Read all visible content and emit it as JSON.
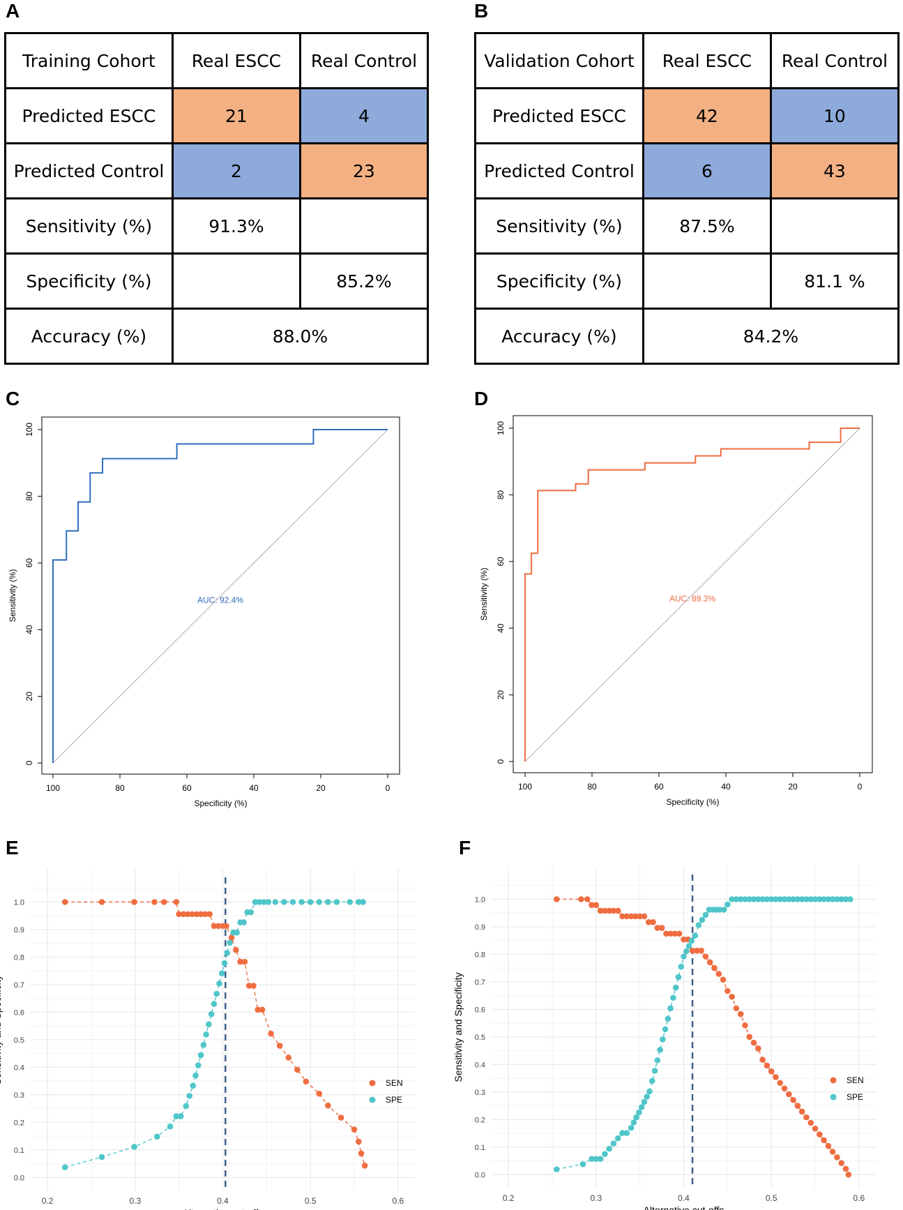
{
  "panels": {
    "a": "A",
    "b": "B",
    "c": "C",
    "d": "D",
    "e": "E",
    "f": "F"
  },
  "colors": {
    "sen": "#ef6d41",
    "spe": "#4fc6c9",
    "roc_train": "#2f6dbb",
    "roc_val": "#ef6d41",
    "cell_orange": "#f3b083",
    "cell_blue": "#8eaadb"
  },
  "tables": {
    "training": {
      "header": [
        "Training Cohort",
        "Real ESCC",
        "Real Control"
      ],
      "row_pred_escc": [
        "Predicted ESCC",
        "21",
        "4"
      ],
      "row_pred_control": [
        "Predicted Control",
        "2",
        "23"
      ],
      "sensitivity": [
        "Sensitivity (%)",
        "91.3%"
      ],
      "specificity": [
        "Specificity (%)",
        "85.2%"
      ],
      "accuracy": [
        "Accuracy (%)",
        "88.0%"
      ]
    },
    "validation": {
      "header": [
        "Validation Cohort",
        "Real ESCC",
        "Real Control"
      ],
      "row_pred_escc": [
        "Predicted ESCC",
        "42",
        "10"
      ],
      "row_pred_control": [
        "Predicted Control",
        "6",
        "43"
      ],
      "sensitivity": [
        "Sensitivity (%)",
        "87.5%"
      ],
      "specificity": [
        "Specificity (%)",
        "81.1 %"
      ],
      "accuracy": [
        "Accuracy (%)",
        "84.2%"
      ]
    }
  },
  "chart_data": [
    {
      "id": "C",
      "type": "line",
      "title": "",
      "xlabel": "Specificity (%)",
      "ylabel": "Sensitivity (%)",
      "xlim": [
        100,
        0
      ],
      "ylim": [
        0,
        100
      ],
      "xticks": [
        "100",
        "80",
        "60",
        "40",
        "20",
        "0"
      ],
      "yticks": [
        "0",
        "20",
        "40",
        "60",
        "80",
        "100"
      ],
      "annotation": "AUC: 92.4%",
      "series": [
        {
          "name": "ROC",
          "color": "#2f6dbb",
          "points": [
            [
              100,
              0
            ],
            [
              100,
              60.9
            ],
            [
              96,
              60.9
            ],
            [
              96,
              69.6
            ],
            [
              92.5,
              69.6
            ],
            [
              92.5,
              78.3
            ],
            [
              88.9,
              78.3
            ],
            [
              88.9,
              87
            ],
            [
              85.2,
              87
            ],
            [
              85.2,
              91.3
            ],
            [
              63,
              91.3
            ],
            [
              63,
              95.7
            ],
            [
              22.2,
              95.7
            ],
            [
              22.2,
              100
            ],
            [
              0,
              100
            ]
          ]
        }
      ]
    },
    {
      "id": "D",
      "type": "line",
      "title": "",
      "xlabel": "Specificity (%)",
      "ylabel": "Sensitivity (%)",
      "xlim": [
        100,
        0
      ],
      "ylim": [
        0,
        100
      ],
      "xticks": [
        "100",
        "80",
        "60",
        "40",
        "20",
        "0"
      ],
      "yticks": [
        "0",
        "20",
        "40",
        "60",
        "80",
        "100"
      ],
      "annotation": "AUC: 89.3%",
      "series": [
        {
          "name": "ROC",
          "color": "#ef6d41",
          "points": [
            [
              100,
              0
            ],
            [
              100,
              56.3
            ],
            [
              98.1,
              56.3
            ],
            [
              98.1,
              62.5
            ],
            [
              96.2,
              62.5
            ],
            [
              96.2,
              81.3
            ],
            [
              84.9,
              81.3
            ],
            [
              84.9,
              83.3
            ],
            [
              81.1,
              83.3
            ],
            [
              81.1,
              87.5
            ],
            [
              64.2,
              87.5
            ],
            [
              64.2,
              89.6
            ],
            [
              49.1,
              89.6
            ],
            [
              49.1,
              91.7
            ],
            [
              41.5,
              91.7
            ],
            [
              41.5,
              93.8
            ],
            [
              15.1,
              93.8
            ],
            [
              15.1,
              95.8
            ],
            [
              5.7,
              95.8
            ],
            [
              5.7,
              100
            ],
            [
              0,
              100
            ]
          ]
        }
      ]
    },
    {
      "id": "E",
      "type": "scatter",
      "title": "",
      "xlabel": "Alternative cut-offs",
      "ylabel": "Sensitivity and Specificity",
      "xlim": [
        0.18,
        0.62
      ],
      "ylim": [
        -0.05,
        1.12
      ],
      "xticks": [
        0.2,
        0.3,
        0.4,
        0.5,
        0.6
      ],
      "xtick_labels": [
        "0.2",
        "0.3",
        "0.4",
        "0.5",
        "0.6"
      ],
      "yticks": [
        0.0,
        0.1,
        0.2,
        0.3,
        0.4,
        0.5,
        0.6,
        0.7,
        0.8,
        0.9,
        1.0
      ],
      "ytick_labels": [
        "0.0",
        "0.1",
        "0.2",
        "0.3",
        "0.4",
        "0.5",
        "0.6",
        "0.7",
        "0.8",
        "0.9",
        "1.0"
      ],
      "cutoff": 0.403,
      "legend": [
        "SEN",
        "SPE"
      ],
      "legend_position": "right",
      "sen_x": [
        0.22,
        0.262,
        0.299,
        0.322,
        0.333,
        0.347,
        0.35,
        0.355,
        0.36,
        0.365,
        0.37,
        0.375,
        0.38,
        0.385,
        0.39,
        0.395,
        0.4,
        0.404,
        0.41,
        0.415,
        0.42,
        0.425,
        0.43,
        0.435,
        0.44,
        0.445,
        0.455,
        0.465,
        0.475,
        0.485,
        0.495,
        0.51,
        0.52,
        0.535,
        0.55,
        0.555,
        0.558,
        0.562
      ],
      "sen_y": [
        1.0,
        1.0,
        1.0,
        1.0,
        1.0,
        1.0,
        0.956,
        0.956,
        0.956,
        0.956,
        0.956,
        0.956,
        0.956,
        0.956,
        0.913,
        0.913,
        0.913,
        0.913,
        0.87,
        0.826,
        0.783,
        0.783,
        0.696,
        0.696,
        0.609,
        0.609,
        0.522,
        0.478,
        0.435,
        0.391,
        0.348,
        0.304,
        0.261,
        0.217,
        0.174,
        0.13,
        0.087,
        0.043
      ],
      "spe_x": [
        0.22,
        0.262,
        0.299,
        0.325,
        0.34,
        0.347,
        0.352,
        0.358,
        0.362,
        0.366,
        0.369,
        0.372,
        0.375,
        0.378,
        0.381,
        0.384,
        0.387,
        0.39,
        0.393,
        0.396,
        0.399,
        0.402,
        0.405,
        0.408,
        0.412,
        0.416,
        0.42,
        0.424,
        0.428,
        0.432,
        0.437,
        0.442,
        0.447,
        0.452,
        0.46,
        0.47,
        0.48,
        0.49,
        0.5,
        0.51,
        0.52,
        0.53,
        0.545,
        0.555,
        0.56
      ],
      "spe_y": [
        0.037,
        0.074,
        0.111,
        0.148,
        0.185,
        0.222,
        0.222,
        0.259,
        0.296,
        0.333,
        0.37,
        0.407,
        0.444,
        0.481,
        0.519,
        0.556,
        0.593,
        0.63,
        0.667,
        0.704,
        0.741,
        0.778,
        0.815,
        0.852,
        0.889,
        0.889,
        0.926,
        0.926,
        0.963,
        0.963,
        1.0,
        1.0,
        1.0,
        1.0,
        1.0,
        1.0,
        1.0,
        1.0,
        1.0,
        1.0,
        1.0,
        1.0,
        1.0,
        1.0,
        1.0
      ]
    },
    {
      "id": "F",
      "type": "scatter",
      "title": "",
      "xlabel": "Alternative cut-offs",
      "ylabel": "Sensitivity and Specificity",
      "xlim": [
        0.18,
        0.62
      ],
      "ylim": [
        -0.05,
        1.12
      ],
      "xticks": [
        0.2,
        0.3,
        0.4,
        0.5,
        0.6
      ],
      "xtick_labels": [
        "0.2",
        "0.3",
        "0.4",
        "0.5",
        "0.6"
      ],
      "yticks": [
        0.0,
        0.1,
        0.2,
        0.3,
        0.4,
        0.5,
        0.6,
        0.7,
        0.8,
        0.9,
        1.0
      ],
      "ytick_labels": [
        "0.0",
        "0.1",
        "0.2",
        "0.3",
        "0.4",
        "0.5",
        "0.6",
        "0.7",
        "0.8",
        "0.9",
        "1.0"
      ],
      "cutoff": 0.41,
      "legend": [
        "SEN",
        "SPE"
      ],
      "legend_position": "right",
      "sen_x": [
        0.255,
        0.283,
        0.29,
        0.295,
        0.3,
        0.305,
        0.31,
        0.315,
        0.32,
        0.325,
        0.33,
        0.335,
        0.34,
        0.345,
        0.35,
        0.355,
        0.36,
        0.365,
        0.37,
        0.375,
        0.38,
        0.385,
        0.39,
        0.395,
        0.4,
        0.405,
        0.41,
        0.415,
        0.42,
        0.425,
        0.43,
        0.435,
        0.44,
        0.445,
        0.45,
        0.455,
        0.46,
        0.465,
        0.47,
        0.475,
        0.48,
        0.485,
        0.49,
        0.495,
        0.5,
        0.505,
        0.51,
        0.515,
        0.52,
        0.525,
        0.53,
        0.535,
        0.54,
        0.545,
        0.55,
        0.555,
        0.56,
        0.565,
        0.57,
        0.575,
        0.58,
        0.585,
        0.588
      ],
      "sen_y": [
        1.0,
        1.0,
        1.0,
        0.979,
        0.979,
        0.958,
        0.958,
        0.958,
        0.958,
        0.958,
        0.938,
        0.938,
        0.938,
        0.938,
        0.938,
        0.938,
        0.917,
        0.917,
        0.896,
        0.896,
        0.875,
        0.875,
        0.875,
        0.875,
        0.854,
        0.854,
        0.813,
        0.813,
        0.813,
        0.792,
        0.771,
        0.75,
        0.729,
        0.708,
        0.667,
        0.646,
        0.604,
        0.583,
        0.542,
        0.5,
        0.479,
        0.458,
        0.417,
        0.396,
        0.375,
        0.354,
        0.333,
        0.313,
        0.292,
        0.271,
        0.25,
        0.229,
        0.208,
        0.188,
        0.167,
        0.146,
        0.125,
        0.104,
        0.083,
        0.063,
        0.042,
        0.021,
        0.0
      ],
      "spe_x": [
        0.255,
        0.285,
        0.295,
        0.3,
        0.305,
        0.31,
        0.315,
        0.32,
        0.325,
        0.33,
        0.335,
        0.34,
        0.343,
        0.346,
        0.349,
        0.352,
        0.355,
        0.358,
        0.361,
        0.364,
        0.367,
        0.37,
        0.373,
        0.376,
        0.379,
        0.382,
        0.385,
        0.388,
        0.391,
        0.394,
        0.397,
        0.4,
        0.403,
        0.406,
        0.409,
        0.413,
        0.417,
        0.421,
        0.425,
        0.429,
        0.433,
        0.437,
        0.441,
        0.446,
        0.45,
        0.455,
        0.46,
        0.465,
        0.47,
        0.475,
        0.48,
        0.485,
        0.49,
        0.495,
        0.5,
        0.505,
        0.51,
        0.515,
        0.52,
        0.525,
        0.53,
        0.535,
        0.54,
        0.545,
        0.55,
        0.555,
        0.56,
        0.565,
        0.57,
        0.575,
        0.58,
        0.585,
        0.59
      ],
      "spe_y": [
        0.019,
        0.038,
        0.057,
        0.057,
        0.057,
        0.075,
        0.094,
        0.113,
        0.132,
        0.151,
        0.151,
        0.17,
        0.189,
        0.208,
        0.226,
        0.245,
        0.264,
        0.283,
        0.302,
        0.34,
        0.377,
        0.415,
        0.453,
        0.491,
        0.528,
        0.566,
        0.604,
        0.642,
        0.679,
        0.717,
        0.755,
        0.792,
        0.811,
        0.83,
        0.849,
        0.868,
        0.906,
        0.925,
        0.943,
        0.962,
        0.962,
        0.962,
        0.962,
        0.962,
        0.981,
        1.0,
        1.0,
        1.0,
        1.0,
        1.0,
        1.0,
        1.0,
        1.0,
        1.0,
        1.0,
        1.0,
        1.0,
        1.0,
        1.0,
        1.0,
        1.0,
        1.0,
        1.0,
        1.0,
        1.0,
        1.0,
        1.0,
        1.0,
        1.0,
        1.0,
        1.0,
        1.0,
        1.0
      ]
    }
  ]
}
